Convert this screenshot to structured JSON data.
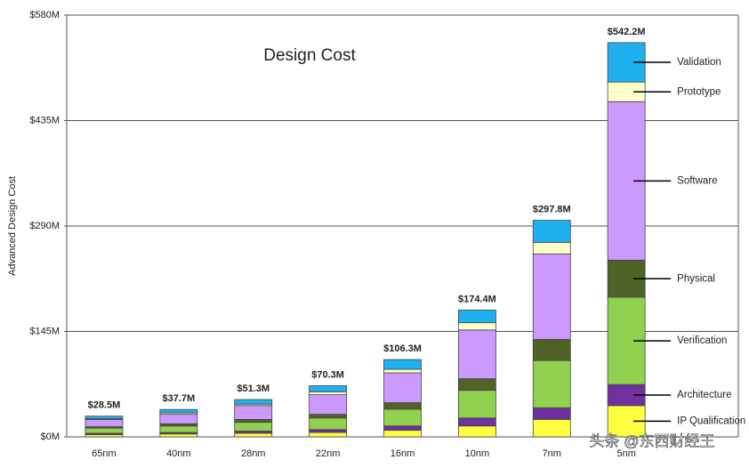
{
  "chart_data": {
    "type": "stacked_bar",
    "title": "Design Cost",
    "y_label": "Advanced  Design Cost",
    "watermark": "头条 @东西财经王",
    "categories": [
      "65nm",
      "40nm",
      "28nm",
      "22nm",
      "16nm",
      "10nm",
      "7nm",
      "5nm"
    ],
    "series": [
      {
        "name": "IP Qualification",
        "color": "#ffff40",
        "values": [
          3,
          4,
          5,
          6,
          9,
          15,
          24,
          43
        ]
      },
      {
        "name": "Architecture",
        "color": "#7030a0",
        "values": [
          2,
          2,
          3,
          4,
          6,
          11,
          16,
          29
        ]
      },
      {
        "name": "Verification",
        "color": "#92d050",
        "values": [
          7,
          9,
          12,
          16,
          23,
          38,
          65,
          120
        ]
      },
      {
        "name": "Physical",
        "color": "#4f6228",
        "values": [
          2,
          3,
          4,
          5,
          9,
          16,
          29,
          51
        ]
      },
      {
        "name": "Software",
        "color": "#cc99ff",
        "values": [
          10,
          13,
          19,
          27,
          41,
          67,
          117.5,
          218
        ]
      },
      {
        "name": "Prototype",
        "color": "#ffffcc",
        "values": [
          1,
          2,
          2,
          4,
          5,
          10,
          16,
          27
        ]
      },
      {
        "name": "Validation",
        "color": "#1fb0f0",
        "values": [
          3.5,
          4.7,
          6.3,
          8.3,
          13.3,
          17.4,
          30.3,
          54.2
        ]
      }
    ],
    "totals": {
      "values": [
        28.5,
        37.7,
        51.3,
        70.3,
        106.3,
        174.4,
        297.8,
        542.2
      ],
      "value_labels": [
        "$28.5M",
        "$37.7M",
        "$51.3M",
        "$70.3M",
        "$106.3M",
        "$174.4M",
        "$297.8M",
        "$542.2M"
      ]
    },
    "ylim": [
      0,
      580
    ],
    "yticks": [
      {
        "value": 0,
        "label": "$0M"
      },
      {
        "value": 145,
        "label": "$145M"
      },
      {
        "value": 290,
        "label": "$290M"
      },
      {
        "value": 435,
        "label": "$435M"
      },
      {
        "value": 580,
        "label": "$580M"
      }
    ],
    "grid": true
  }
}
